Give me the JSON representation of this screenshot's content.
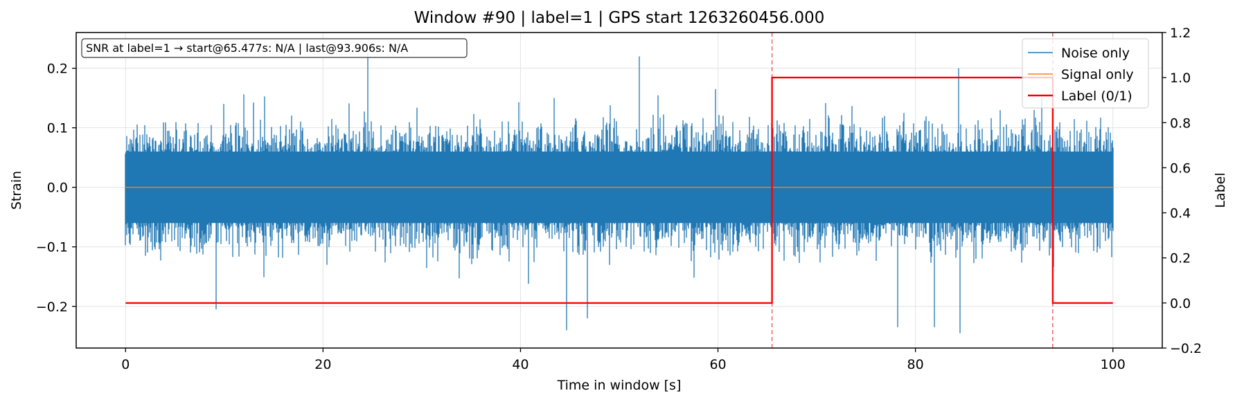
{
  "chart_data": {
    "type": "line",
    "title": "Window #90  |  label=1  |  GPS start 1263260456.000",
    "xlabel": "Time in window [s]",
    "ylabel": "Strain",
    "y2label": "Label",
    "xlim": [
      -5,
      105
    ],
    "ylim": [
      -0.27,
      0.26
    ],
    "y2lim": [
      -0.2,
      1.2
    ],
    "x_ticks": [
      0,
      20,
      40,
      60,
      80,
      100
    ],
    "x_tick_labels": [
      "0",
      "20",
      "40",
      "60",
      "80",
      "100"
    ],
    "y_ticks": [
      -0.2,
      -0.1,
      0.0,
      0.1,
      0.2
    ],
    "y_tick_labels": [
      "−0.2",
      "−0.1",
      "0.0",
      "0.1",
      "0.2"
    ],
    "y2_ticks": [
      -0.2,
      0.0,
      0.2,
      0.4,
      0.6,
      0.8,
      1.0,
      1.2
    ],
    "y2_tick_labels": [
      "−0.2",
      "0.0",
      "0.2",
      "0.4",
      "0.6",
      "0.8",
      "1.0",
      "1.2"
    ],
    "grid": true,
    "legend_position": "top-right",
    "annotation": "SNR at label=1 → start@65.477s: N/A | last@93.906s: N/A",
    "colors": {
      "noise": "#1f77b4",
      "signal": "#ff7f0e",
      "label": "#ff0000",
      "marker": "#e85a5a"
    },
    "series": [
      {
        "name": "Noise only",
        "axis": "left",
        "x_range": [
          0,
          100
        ],
        "y_range_typical": [
          -0.12,
          0.12
        ],
        "y_min": -0.245,
        "y_max": 0.225,
        "notable_peaks": [
          [
            9.2,
            -0.205
          ],
          [
            24.5,
            0.225
          ],
          [
            44.7,
            -0.24
          ],
          [
            46.8,
            -0.22
          ],
          [
            52.0,
            0.22
          ],
          [
            78.2,
            -0.235
          ],
          [
            81.9,
            -0.235
          ],
          [
            84.5,
            -0.245
          ],
          [
            84.4,
            0.2
          ]
        ]
      },
      {
        "name": "Signal only",
        "axis": "left",
        "x": [
          0,
          100
        ],
        "y": [
          0.0,
          0.0
        ]
      },
      {
        "name": "Label (0/1)",
        "axis": "right",
        "x": [
          0,
          65.477,
          65.477,
          93.906,
          93.906,
          100
        ],
        "y": [
          0,
          0,
          1,
          1,
          0,
          0
        ]
      }
    ],
    "vlines": [
      65.477,
      93.906
    ]
  }
}
